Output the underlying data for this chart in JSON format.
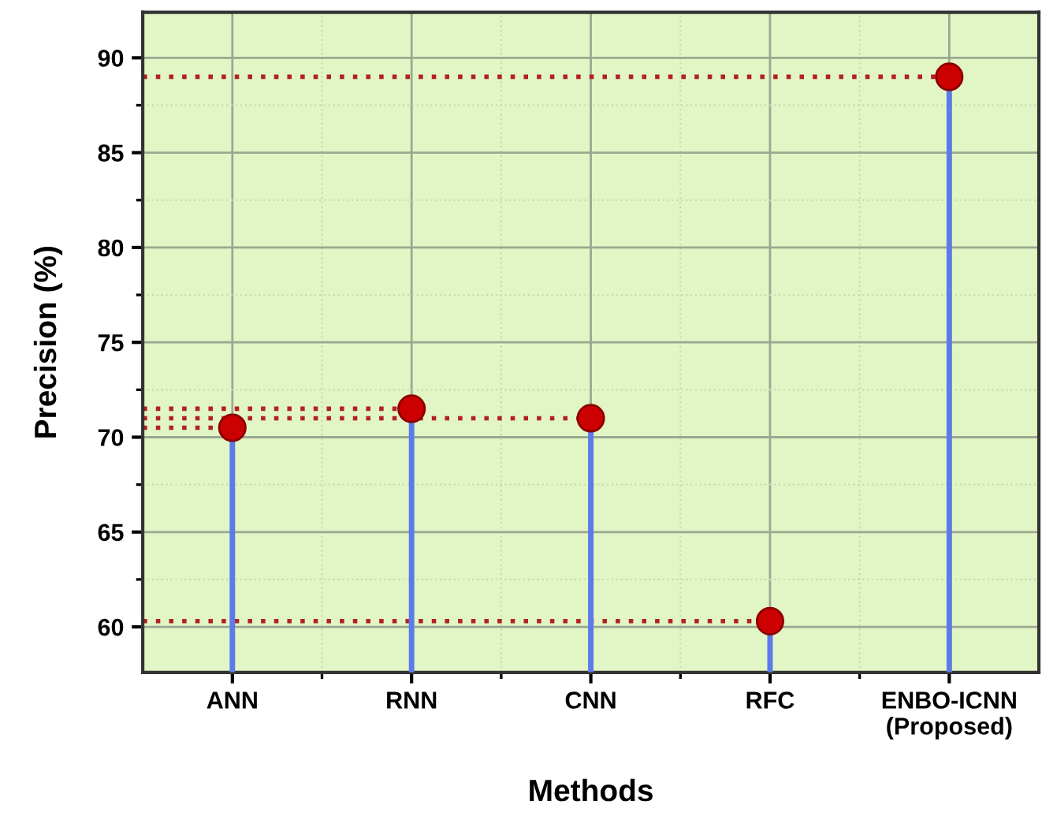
{
  "chart_data": {
    "type": "lollipop",
    "xlabel": "Methods",
    "ylabel": "Precision (%)",
    "categories": [
      "ANN",
      "RNN",
      "CNN",
      "RFC",
      "ENBO-ICNN\n(Proposed)"
    ],
    "series": [
      {
        "color": "#cc0000",
        "values": [
          70.5,
          71.5,
          71,
          60.3,
          89
        ]
      }
    ],
    "ylim": [
      57.6,
      92.4
    ],
    "yticks": [
      60,
      65,
      70,
      75,
      80,
      85,
      90
    ],
    "ref_lines": [
      {
        "axis": "y",
        "value": 70.5,
        "color": "#b22222",
        "line_style": "dotted"
      },
      {
        "axis": "y",
        "value": 71.5,
        "color": "#b22222",
        "line_style": "dotted"
      },
      {
        "axis": "y",
        "value": 71,
        "color": "#b22222",
        "line_style": "dotted"
      },
      {
        "axis": "y",
        "value": 60.3,
        "color": "#b22222",
        "line_style": "dotted"
      },
      {
        "axis": "y",
        "value": 89,
        "color": "#b22222",
        "line_style": "dotted"
      }
    ],
    "grid": true,
    "marker": "circle"
  }
}
